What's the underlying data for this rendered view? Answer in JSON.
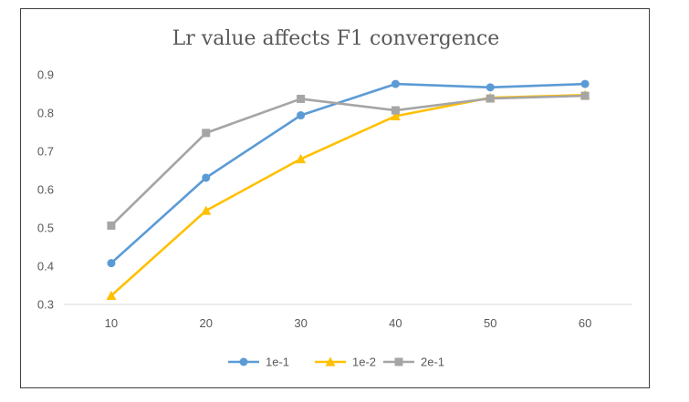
{
  "chart_data": {
    "type": "line",
    "title": "Lr value affects F1 convergence",
    "xlabel": "",
    "ylabel": "",
    "categories": [
      10,
      20,
      30,
      40,
      50,
      60
    ],
    "category_labels": [
      "10",
      "20",
      "30",
      "40",
      "50",
      "60"
    ],
    "ylim": [
      0.3,
      0.9
    ],
    "yticks": [
      0.3,
      0.4,
      0.5,
      0.6,
      0.7,
      0.8,
      0.9
    ],
    "ytick_labels": [
      "0.3",
      "0.4",
      "0.5",
      "0.6",
      "0.7",
      "0.8",
      "0.9"
    ],
    "grid": false,
    "legend_position": "bottom",
    "series": [
      {
        "name": "1e-1",
        "color": "#5B9BD5",
        "marker": "circle",
        "values": [
          0.408,
          0.631,
          0.794,
          0.876,
          0.867,
          0.876
        ]
      },
      {
        "name": "1e-2",
        "color": "#FFC000",
        "marker": "triangle",
        "values": [
          0.323,
          0.545,
          0.68,
          0.792,
          0.84,
          0.847
        ]
      },
      {
        "name": "2e-1",
        "color": "#A5A5A5",
        "marker": "square",
        "values": [
          0.506,
          0.748,
          0.837,
          0.807,
          0.838,
          0.845
        ]
      }
    ]
  }
}
